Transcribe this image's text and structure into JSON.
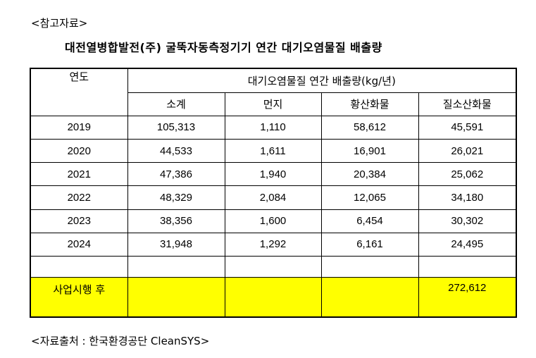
{
  "reference_label": "<참고자료>",
  "title": "대전열병합발전(주) 굴뚝자동측정기기 연간 대기오염물질 배출량",
  "table": {
    "year_header": "연도",
    "group_header": "대기오염물질 연간 배출량(kg/년)",
    "columns": [
      "소계",
      "먼지",
      "황산화물",
      "질소산화물"
    ],
    "rows": [
      {
        "year": "2019",
        "values": [
          "105,313",
          "1,110",
          "58,612",
          "45,591"
        ]
      },
      {
        "year": "2020",
        "values": [
          "44,533",
          "1,611",
          "16,901",
          "26,021"
        ]
      },
      {
        "year": "2021",
        "values": [
          "47,386",
          "1,940",
          "20,384",
          "25,062"
        ]
      },
      {
        "year": "2022",
        "values": [
          "48,329",
          "2,084",
          "12,065",
          "34,180"
        ]
      },
      {
        "year": "2023",
        "values": [
          "38,356",
          "1,600",
          "6,454",
          "30,302"
        ]
      },
      {
        "year": "2024",
        "values": [
          "31,948",
          "1,292",
          "6,161",
          "24,495"
        ]
      }
    ],
    "after_label": "사업시행 후",
    "after_values": [
      "",
      "",
      "",
      "272,612"
    ],
    "highlight_color": "#ffff00"
  },
  "source_label": "<자료출처 : 한국환경공단 CleanSYS>"
}
